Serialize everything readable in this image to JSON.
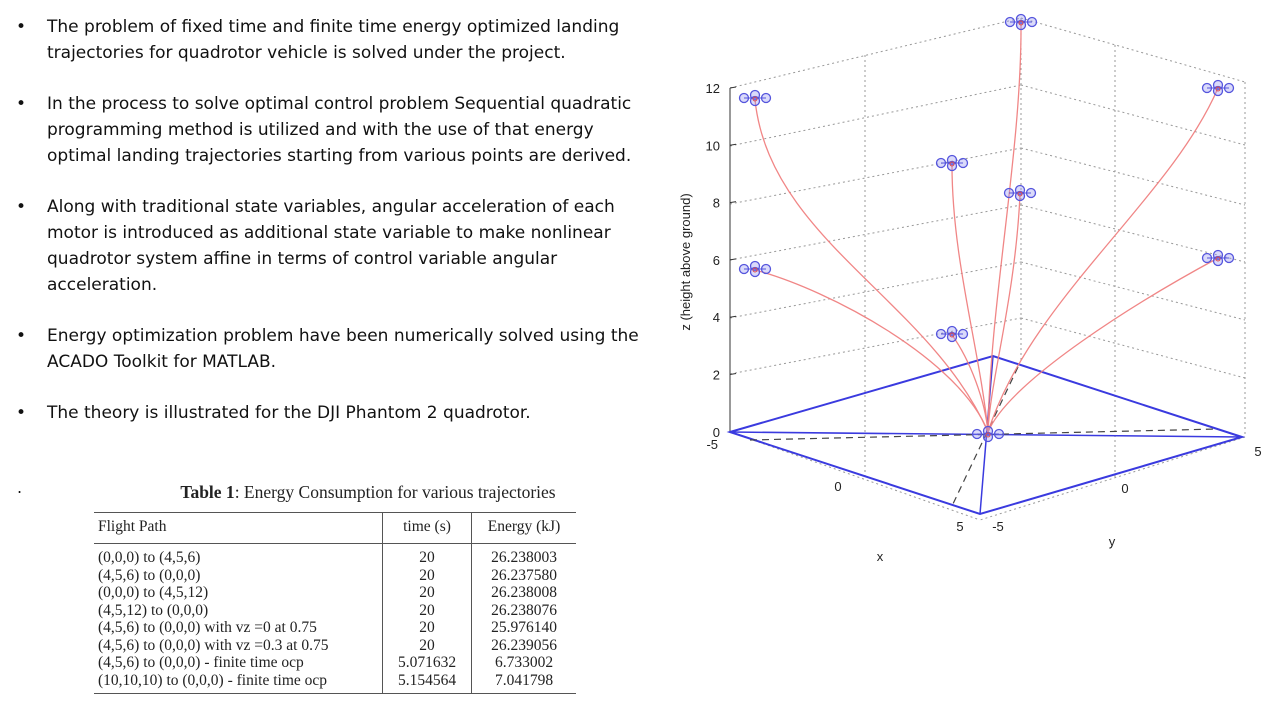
{
  "bullets": [
    "The problem of fixed time and finite time energy optimized landing trajectories for quadrotor vehicle is solved under the project.",
    "In the process to solve optimal control problem Sequential quadratic programming method is utilized and with the use of that energy optimal landing trajectories starting from various points are derived.",
    "Along with traditional state variables, angular acceleration of each motor is introduced as additional state variable to make nonlinear quadrotor system affine in terms of control variable angular acceleration.",
    "Energy optimization problem have been numerically solved using the ACADO Toolkit for MATLAB.",
    "The theory is illustrated for the DJI Phantom 2 quadrotor."
  ],
  "stray_mark": ".",
  "table": {
    "caption_label": "Table 1",
    "caption_text": ": Energy Consumption for various trajectories",
    "headers": [
      "Flight Path",
      "time (s)",
      "Energy (kJ)"
    ],
    "rows": [
      [
        "(0,0,0) to (4,5,6)",
        "20",
        "26.238003"
      ],
      [
        "(4,5,6) to (0,0,0)",
        "20",
        "26.237580"
      ],
      [
        "(0,0,0) to (4,5,12)",
        "20",
        "26.238008"
      ],
      [
        "(4,5,12) to (0,0,0)",
        "20",
        "26.238076"
      ],
      [
        "(4,5,6) to (0,0,0) with vz =0 at 0.75",
        "20",
        "25.976140"
      ],
      [
        "(4,5,6) to (0,0,0) with vz =0.3 at 0.75",
        "20",
        "26.239056"
      ],
      [
        "(4,5,6) to (0,0,0) - finite time ocp",
        "5.071632",
        "6.733002"
      ],
      [
        "(10,10,10) to (0,0,0) - finite time ocp",
        "5.154564",
        "7.041798"
      ]
    ]
  },
  "plot": {
    "z_label": "z (height above ground)",
    "x_label": "x",
    "y_label": "y",
    "z_ticks": [
      "12",
      "10",
      "8",
      "6",
      "4",
      "2",
      "0"
    ],
    "x_ticks": [
      "-5",
      "0",
      "5"
    ],
    "y_ticks": [
      "-5",
      "0",
      "5"
    ],
    "trajectory_color": "#f08080",
    "quadrotor_color": "#5555dd",
    "pad_color": "#3a3adf"
  }
}
